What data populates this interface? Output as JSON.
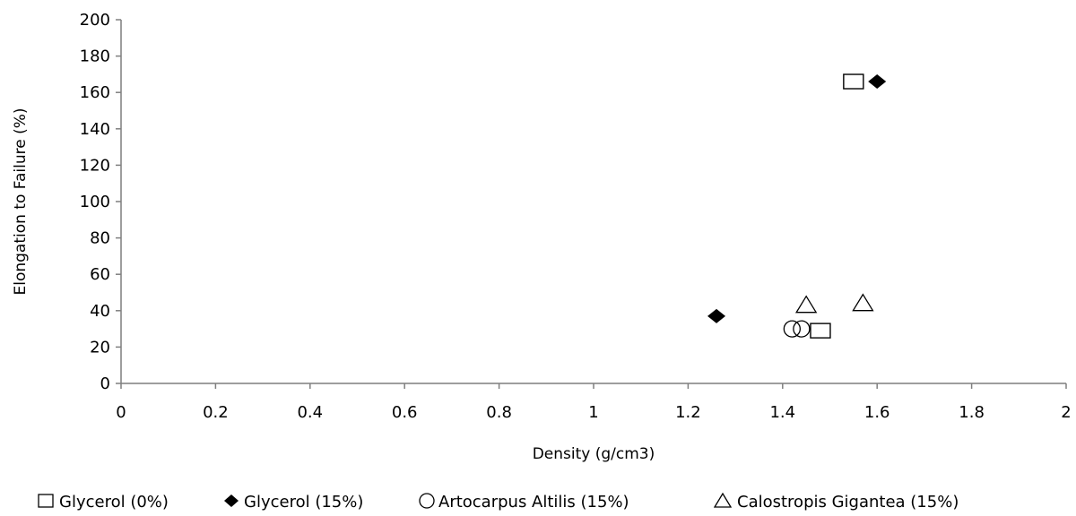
{
  "chart_data": {
    "type": "scatter",
    "title": "",
    "xlabel": "Density (g/cm3)",
    "ylabel": "Elongation to Failure (%)",
    "xlim": [
      0,
      2
    ],
    "ylim": [
      0,
      200
    ],
    "xticks": [
      "0",
      "0.2",
      "0.4",
      "0.6",
      "0.8",
      "1",
      "1.2",
      "1.4",
      "1.6",
      "1.8",
      "2"
    ],
    "yticks": [
      "0",
      "20",
      "40",
      "60",
      "80",
      "100",
      "120",
      "140",
      "160",
      "180",
      "200"
    ],
    "grid": false,
    "legend_position": "bottom",
    "series": [
      {
        "name": "Glycerol (0%)",
        "marker": "square-open",
        "points": [
          {
            "x": 1.55,
            "y": 166
          },
          {
            "x": 1.48,
            "y": 29
          }
        ]
      },
      {
        "name": "Glycerol (15%)",
        "marker": "diamond-filled",
        "points": [
          {
            "x": 1.6,
            "y": 166
          },
          {
            "x": 1.26,
            "y": 37
          }
        ]
      },
      {
        "name": "Artocarpus Altilis (15%)",
        "marker": "circle-open",
        "points": [
          {
            "x": 1.42,
            "y": 30
          },
          {
            "x": 1.44,
            "y": 30
          }
        ]
      },
      {
        "name": "Calostropis Gigantea (15%)",
        "marker": "triangle-open",
        "points": [
          {
            "x": 1.45,
            "y": 43
          },
          {
            "x": 1.57,
            "y": 44
          }
        ]
      }
    ]
  },
  "legend": {
    "glycerol_0": "Glycerol (0%)",
    "glycerol_15": "Glycerol (15%)",
    "artocarpus": "Artocarpus Altilis (15%)",
    "calostropis": "Calostropis Gigantea (15%)"
  }
}
